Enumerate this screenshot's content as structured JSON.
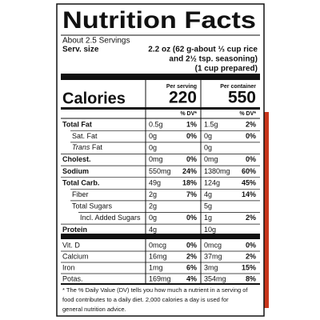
{
  "header": {
    "title": "Nutrition Facts",
    "servings": "About 2.5 Servings",
    "serv_size_label": "Serv. size",
    "serv_size_lines": [
      "2.2 oz (62 g-about ⅓ cup rice",
      "and 2½ tsp. seasoning)",
      "(1 cup prepared)"
    ]
  },
  "columns": {
    "per_serving": "Per serving",
    "per_container": "Per container",
    "dv_serving": "% DV*",
    "dv_container": "% DV*"
  },
  "calories": {
    "label": "Calories",
    "per_serving": "220",
    "per_container": "550"
  },
  "nutrients": [
    {
      "label": "Total Fat",
      "serving": "0.5g",
      "serving_dv": "1%",
      "container": "1.5g",
      "container_dv": "2%"
    },
    {
      "label": "Sat. Fat",
      "serving": "0g",
      "serving_dv": "0%",
      "container": "0g",
      "container_dv": "0%"
    },
    {
      "label_italic": "Trans",
      "label": "Fat",
      "serving": "0g",
      "container": "0g"
    },
    {
      "label": "Cholest.",
      "serving": "0mg",
      "serving_dv": "0%",
      "container": "0mg",
      "container_dv": "0%"
    },
    {
      "label": "Sodium",
      "serving": "550mg",
      "serving_dv": "24%",
      "container": "1380mg",
      "container_dv": "60%"
    },
    {
      "label": "Total Carb.",
      "serving": "49g",
      "serving_dv": "18%",
      "container": "124g",
      "container_dv": "45%"
    },
    {
      "label": "Fiber",
      "serving": "2g",
      "serving_dv": "7%",
      "container": "4g",
      "container_dv": "14%"
    },
    {
      "label": "Total Sugars",
      "serving": "2g",
      "container": "5g"
    },
    {
      "label": "Incl. Added Sugars",
      "serving": "0g",
      "serving_dv": "0%",
      "container": "1g",
      "container_dv": "2%"
    },
    {
      "label": "Protein",
      "serving": "4g",
      "container": "10g"
    }
  ],
  "vitamins": [
    {
      "label": "Vit. D",
      "serving": "0mcg",
      "serving_dv": "0%",
      "container": "0mcg",
      "container_dv": "0%"
    },
    {
      "label": "Calcium",
      "serving": "16mg",
      "serving_dv": "2%",
      "container": "37mg",
      "container_dv": "2%"
    },
    {
      "label": "Iron",
      "serving": "1mg",
      "serving_dv": "6%",
      "container": "3mg",
      "container_dv": "15%"
    },
    {
      "label": "Potas.",
      "serving": "169mg",
      "serving_dv": "4%",
      "container": "354mg",
      "container_dv": "8%"
    }
  ],
  "footnote": [
    "* The % Daily Value (DV) tells you how much a nutrient in a serving of",
    "food contributes to a daily diet. 2,000 calories a day is used for",
    "general nutrition advice."
  ]
}
